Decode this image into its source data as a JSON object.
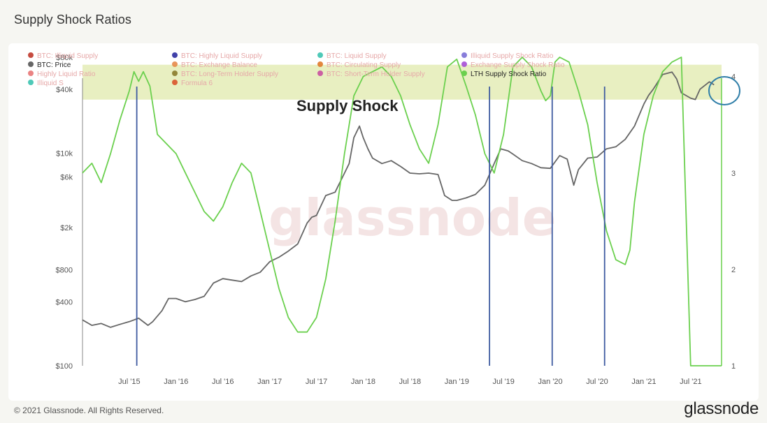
{
  "title": "Supply Shock Ratios",
  "footer": {
    "copyright": "© 2021 Glassnode. All Rights Reserved.",
    "logo": "glassnode"
  },
  "watermark": "glassnode",
  "annotation": {
    "label": "Supply Shock",
    "band_color": "#e6edba"
  },
  "legend": [
    {
      "label": "BTC: Illiquid Supply",
      "color": "#c0392b",
      "active": false
    },
    {
      "label": "BTC: Highly Liquid Supply",
      "color": "#2c2ca0",
      "active": false
    },
    {
      "label": "BTC: Liquid Supply",
      "color": "#3cc3b0",
      "active": false
    },
    {
      "label": "Illiquid Supply Shock Ratio",
      "color": "#7b6fd6",
      "active": false
    },
    {
      "label": "BTC: Price",
      "color": "#666666",
      "active": true
    },
    {
      "label": "BTC: Exchange Balance",
      "color": "#e6894a",
      "active": false
    },
    {
      "label": "BTC: Circulating Supply",
      "color": "#e07a2a",
      "active": false
    },
    {
      "label": "Exchange Supply Shock Ratio",
      "color": "#a64fd6",
      "active": false
    },
    {
      "label": "Highly Liquid Ratio",
      "color": "#e87575",
      "active": false
    },
    {
      "label": "BTC: Long-Term Holder Supply",
      "color": "#8a7a2a",
      "active": false
    },
    {
      "label": "BTC: Short-Term Holder Supply",
      "color": "#c94fa0",
      "active": false
    },
    {
      "label": "LTH Supply Shock Ratio",
      "color": "#6bd04e",
      "active": true
    },
    {
      "label": "Illiquid S",
      "color": "#3cc3b0",
      "active": false
    },
    {
      "label": "Formula 6",
      "color": "#d9532a",
      "active": false
    }
  ],
  "chart_data": {
    "type": "line",
    "x_tick_labels": [
      "Jul '15",
      "Jan '16",
      "Jul '16",
      "Jan '17",
      "Jul '17",
      "Jan '18",
      "Jul '18",
      "Jan '19",
      "Jul '19",
      "Jan '20",
      "Jul '20",
      "Jan '21",
      "Jul '21"
    ],
    "x_range": [
      2015.0,
      2021.83
    ],
    "y_left": {
      "scale": "log",
      "range": [
        100,
        80000
      ],
      "tick_labels": [
        "$100",
        "$400",
        "$800",
        "$2k",
        "$6k",
        "$10k",
        "$40k",
        "$80k"
      ],
      "tick_values": [
        100,
        400,
        800,
        2000,
        6000,
        10000,
        40000,
        80000
      ]
    },
    "y_right": {
      "scale": "linear",
      "range": [
        1,
        4.2
      ],
      "tick_labels": [
        "1",
        "2",
        "3",
        "4"
      ],
      "tick_values": [
        1,
        2,
        3,
        4
      ]
    },
    "series": [
      {
        "name": "BTC: Price",
        "axis": "left",
        "color": "#666666",
        "x": [
          2015.0,
          2015.1,
          2015.2,
          2015.3,
          2015.4,
          2015.5,
          2015.6,
          2015.7,
          2015.75,
          2015.85,
          2015.92,
          2016.0,
          2016.1,
          2016.2,
          2016.3,
          2016.4,
          2016.5,
          2016.6,
          2016.7,
          2016.8,
          2016.9,
          2017.0,
          2017.05,
          2017.1,
          2017.2,
          2017.3,
          2017.4,
          2017.45,
          2017.5,
          2017.6,
          2017.7,
          2017.8,
          2017.85,
          2017.9,
          2017.96,
          2018.0,
          2018.05,
          2018.1,
          2018.2,
          2018.3,
          2018.4,
          2018.5,
          2018.6,
          2018.7,
          2018.8,
          2018.87,
          2018.95,
          2019.0,
          2019.1,
          2019.2,
          2019.3,
          2019.4,
          2019.47,
          2019.55,
          2019.6,
          2019.7,
          2019.8,
          2019.9,
          2020.0,
          2020.1,
          2020.18,
          2020.25,
          2020.3,
          2020.4,
          2020.5,
          2020.6,
          2020.7,
          2020.8,
          2020.9,
          2021.0,
          2021.05,
          2021.1,
          2021.2,
          2021.3,
          2021.35,
          2021.4,
          2021.5,
          2021.55,
          2021.6,
          2021.7,
          2021.75
        ],
        "values": [
          270,
          240,
          250,
          230,
          245,
          260,
          280,
          240,
          260,
          330,
          430,
          430,
          400,
          420,
          450,
          600,
          660,
          640,
          620,
          700,
          760,
          950,
          1000,
          1050,
          1200,
          1400,
          2200,
          2500,
          2600,
          4000,
          4300,
          6500,
          8000,
          14000,
          18000,
          14000,
          11000,
          9000,
          8000,
          8500,
          7500,
          6500,
          6400,
          6500,
          6300,
          4000,
          3600,
          3600,
          3800,
          4100,
          5000,
          8000,
          11000,
          10500,
          9800,
          8500,
          8000,
          7300,
          7200,
          9500,
          8800,
          5000,
          7000,
          9000,
          9200,
          11000,
          11500,
          13500,
          18000,
          29000,
          35000,
          40000,
          55000,
          58000,
          50000,
          37000,
          33000,
          32000,
          40000,
          47000,
          44000
        ]
      },
      {
        "name": "LTH Supply Shock Ratio",
        "axis": "right",
        "color": "#6bd04e",
        "x": [
          2015.0,
          2015.1,
          2015.2,
          2015.3,
          2015.4,
          2015.5,
          2015.55,
          2015.6,
          2015.65,
          2015.72,
          2015.8,
          2015.9,
          2016.0,
          2016.1,
          2016.2,
          2016.3,
          2016.4,
          2016.5,
          2016.6,
          2016.7,
          2016.8,
          2016.9,
          2017.0,
          2017.1,
          2017.2,
          2017.3,
          2017.4,
          2017.5,
          2017.6,
          2017.7,
          2017.8,
          2017.9,
          2018.0,
          2018.1,
          2018.2,
          2018.3,
          2018.4,
          2018.5,
          2018.6,
          2018.7,
          2018.8,
          2018.9,
          2019.0,
          2019.1,
          2019.2,
          2019.3,
          2019.4,
          2019.5,
          2019.6,
          2019.7,
          2019.8,
          2019.9,
          2019.95,
          2020.0,
          2020.05,
          2020.1,
          2020.2,
          2020.3,
          2020.4,
          2020.5,
          2020.6,
          2020.7,
          2020.8,
          2020.85,
          2020.9,
          2021.0,
          2021.1,
          2021.2,
          2021.3,
          2021.4,
          2021.5,
          2021.6,
          2021.7,
          2021.75,
          2021.8,
          2021.83
        ],
        "values": [
          3.0,
          3.1,
          2.9,
          3.2,
          3.55,
          3.85,
          4.05,
          3.95,
          4.05,
          3.9,
          3.4,
          3.3,
          3.2,
          3.0,
          2.8,
          2.6,
          2.5,
          2.65,
          2.9,
          3.1,
          3.0,
          2.6,
          2.2,
          1.8,
          1.5,
          1.35,
          1.35,
          1.5,
          1.9,
          2.5,
          3.2,
          3.8,
          4.0,
          4.05,
          4.1,
          4.0,
          3.8,
          3.5,
          3.25,
          3.1,
          3.5,
          4.1,
          4.18,
          3.9,
          3.6,
          3.2,
          3.0,
          3.4,
          4.1,
          4.2,
          4.1,
          3.85,
          3.75,
          3.8,
          4.15,
          4.2,
          4.15,
          3.85,
          3.5,
          2.9,
          2.4,
          2.1,
          2.05,
          2.2,
          2.7,
          3.4,
          3.8,
          4.05,
          4.15,
          4.2,
          1.0,
          1.0,
          1.0,
          1.0,
          1.0,
          1.0
        ]
      }
    ],
    "vertical_markers": [
      2015.58,
      2019.35,
      2020.02,
      2020.58
    ],
    "grid": false,
    "legend_position": "top-left"
  }
}
